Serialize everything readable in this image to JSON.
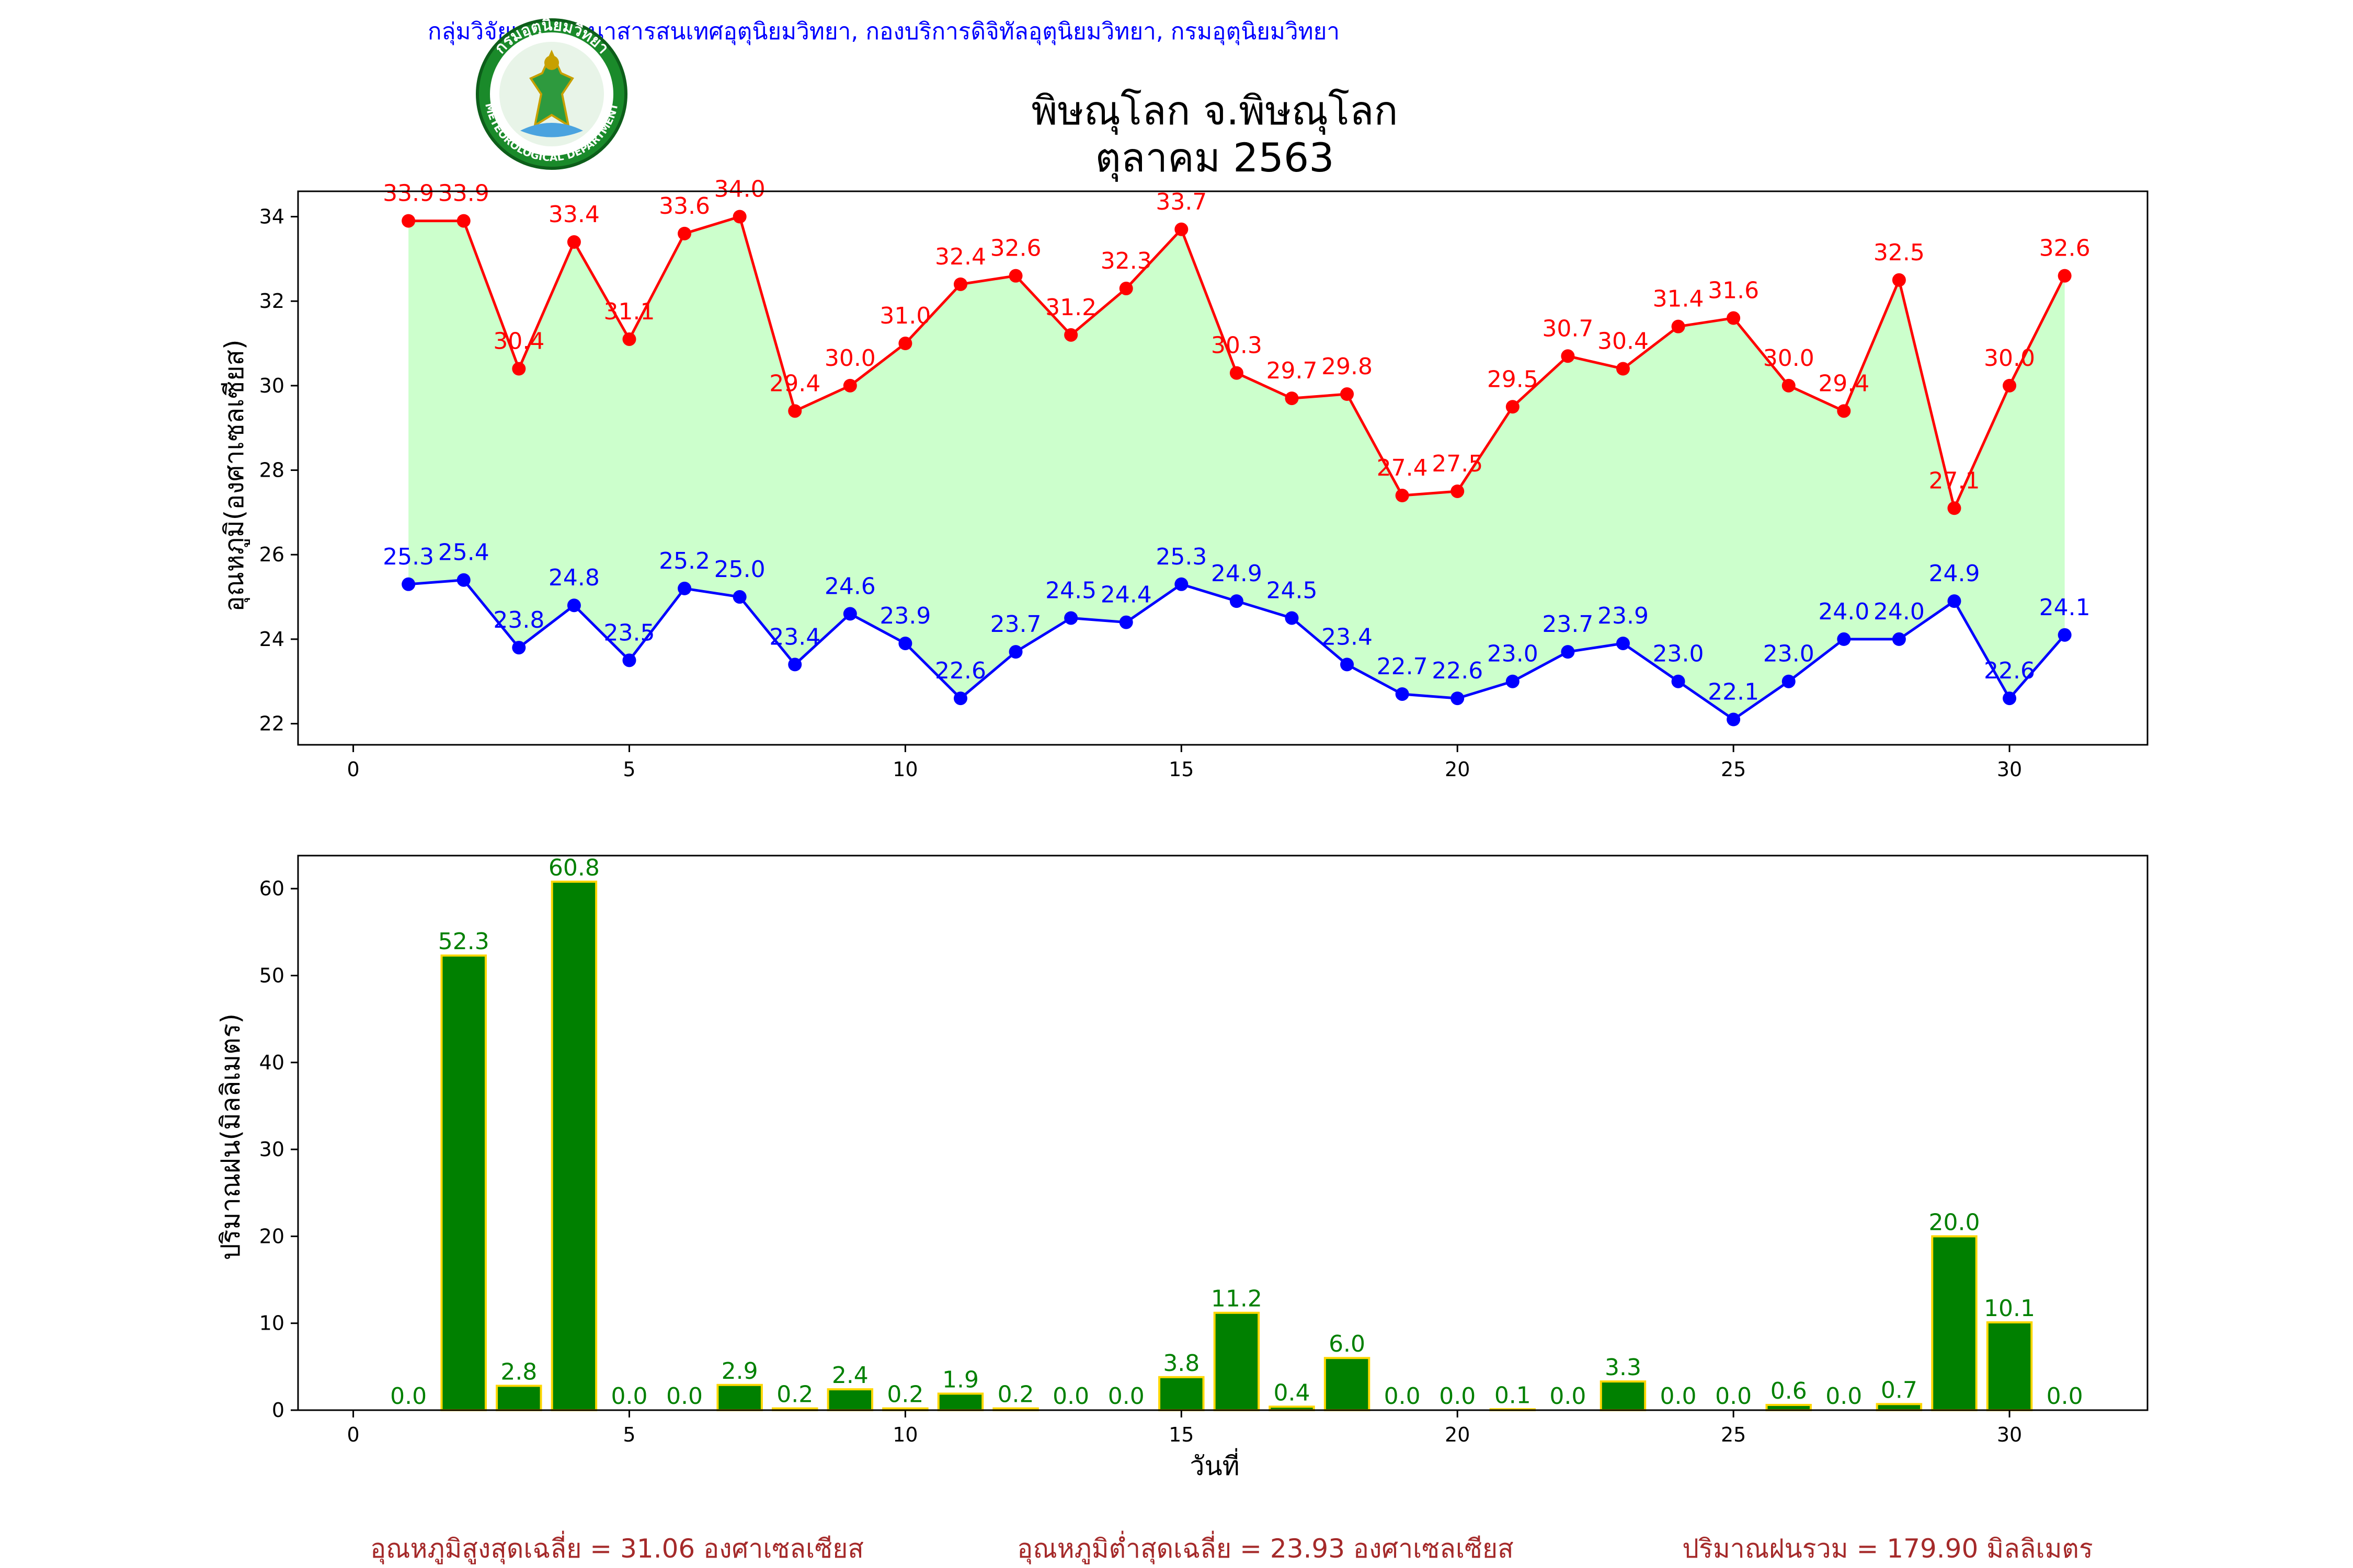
{
  "header": {
    "agency": "กลุ่มวิจัยและพัฒนาสารสนเทศอุตุนิยมวิทยา, กองบริการดิจิทัลอุตุนิยมวิทยา, กรมอุตุนิยมวิทยา",
    "title": "พิษณุโลก จ.พิษณุโลก",
    "subtitle": "ตุลาคม 2563",
    "logo_text_top": "กรมอุตุนิยมวิทยา",
    "logo_text_bottom": "METEOROLOGICAL DEPARTMENT"
  },
  "colors": {
    "max_line": "#ff0000",
    "min_line": "#0000ff",
    "fill": "#ccffcc",
    "bar": "#008000",
    "bar_edge": "#ffd700",
    "bar_label": "#008000",
    "summary": "#a52a2a",
    "agency": "#0000ff"
  },
  "chart_data": [
    {
      "type": "line",
      "ylabel": "อุณหภูมิ(องศาเซลเซียส)",
      "xlabel": "",
      "xlim": [
        -1,
        32.5
      ],
      "ylim": [
        21.5,
        34.6
      ],
      "xticks": [
        0,
        5,
        10,
        15,
        20,
        25,
        30
      ],
      "yticks": [
        22,
        24,
        26,
        28,
        30,
        32,
        34
      ],
      "x": [
        1,
        2,
        3,
        4,
        5,
        6,
        7,
        8,
        9,
        10,
        11,
        12,
        13,
        14,
        15,
        16,
        17,
        18,
        19,
        20,
        21,
        22,
        23,
        24,
        25,
        26,
        27,
        28,
        29,
        30,
        31
      ],
      "fill_between": true,
      "series": [
        {
          "key": "max",
          "values": [
            33.9,
            33.9,
            30.4,
            33.4,
            31.1,
            33.6,
            34.0,
            29.4,
            30.0,
            31.0,
            32.4,
            32.6,
            31.2,
            32.3,
            33.7,
            30.3,
            29.7,
            29.8,
            27.4,
            27.5,
            29.5,
            30.7,
            30.4,
            31.4,
            31.6,
            30.0,
            29.4,
            32.5,
            27.1,
            30.0,
            32.6
          ],
          "labels": [
            "33.9",
            "33.9",
            "30.4",
            "33.4",
            "31.1",
            "33.6",
            "34.0",
            "29.4",
            "30.0",
            "31.0",
            "32.4",
            "32.6",
            "31.2",
            "32.3",
            "33.7",
            "30.3",
            "29.7",
            "29.8",
            "27.4",
            "27.5",
            "29.5",
            "30.7",
            "30.4",
            "31.4",
            "31.6",
            "30.0",
            "29.4",
            "32.5",
            "27.1",
            "30.0",
            "32.6"
          ]
        },
        {
          "key": "min",
          "values": [
            25.3,
            25.4,
            23.8,
            24.8,
            23.5,
            25.2,
            25.0,
            23.4,
            24.6,
            23.9,
            22.6,
            23.7,
            24.5,
            24.4,
            25.3,
            24.9,
            24.5,
            23.4,
            22.7,
            22.6,
            23.0,
            23.7,
            23.9,
            23.0,
            22.1,
            23.0,
            24.0,
            24.0,
            24.9,
            22.6,
            24.1
          ],
          "labels": [
            "25.3",
            "25.4",
            "23.8",
            "24.8",
            "23.5",
            "25.2",
            "25.0",
            "23.4",
            "24.6",
            "23.9",
            "22.6",
            "23.7",
            "24.5",
            "24.4",
            "25.3",
            "24.9",
            "24.5",
            "23.4",
            "22.7",
            "22.6",
            "23.0",
            "23.7",
            "23.9",
            "23.0",
            "22.1",
            "23.0",
            "24.0",
            "24.0",
            "24.9",
            "22.6",
            "24.1"
          ]
        }
      ]
    },
    {
      "type": "bar",
      "ylabel": "ปริมาณฝน(มิลลิเมตร)",
      "xlabel": "วันที่",
      "xlim": [
        -1,
        32.5
      ],
      "ylim": [
        0,
        63.8
      ],
      "xticks": [
        0,
        5,
        10,
        15,
        20,
        25,
        30
      ],
      "yticks": [
        0,
        10,
        20,
        30,
        40,
        50,
        60
      ],
      "x": [
        1,
        2,
        3,
        4,
        5,
        6,
        7,
        8,
        9,
        10,
        11,
        12,
        13,
        14,
        15,
        16,
        17,
        18,
        19,
        20,
        21,
        22,
        23,
        24,
        25,
        26,
        27,
        28,
        29,
        30,
        31
      ],
      "values": [
        0.0,
        52.3,
        2.8,
        60.8,
        0.0,
        0.0,
        2.9,
        0.2,
        2.4,
        0.2,
        1.9,
        0.2,
        0.0,
        0.0,
        3.8,
        11.2,
        0.4,
        6.0,
        0.0,
        0.0,
        0.1,
        0.0,
        3.3,
        0.0,
        0.0,
        0.6,
        0.0,
        0.7,
        20.0,
        10.1,
        0.0
      ],
      "labels": [
        "0.0",
        "52.3",
        "2.8",
        "60.8",
        "0.0",
        "0.0",
        "2.9",
        "0.2",
        "2.4",
        "0.2",
        "1.9",
        "0.2",
        "0.0",
        "0.0",
        "3.8",
        "11.2",
        "0.4",
        "6.0",
        "0.0",
        "0.0",
        "0.1",
        "0.0",
        "3.3",
        "0.0",
        "0.0",
        "0.6",
        "0.0",
        "0.7",
        "20.0",
        "10.1",
        "0.0"
      ]
    }
  ],
  "summary": {
    "avg_max": "อุณหภูมิสูงสุดเฉลี่ย = 31.06 องศาเซลเซียส",
    "avg_min": "อุณหภูมิต่ำสุดเฉลี่ย = 23.93 องศาเซลเซียส",
    "total_rain": "ปริมาณฝนรวม = 179.90 มิลลิเมตร"
  }
}
